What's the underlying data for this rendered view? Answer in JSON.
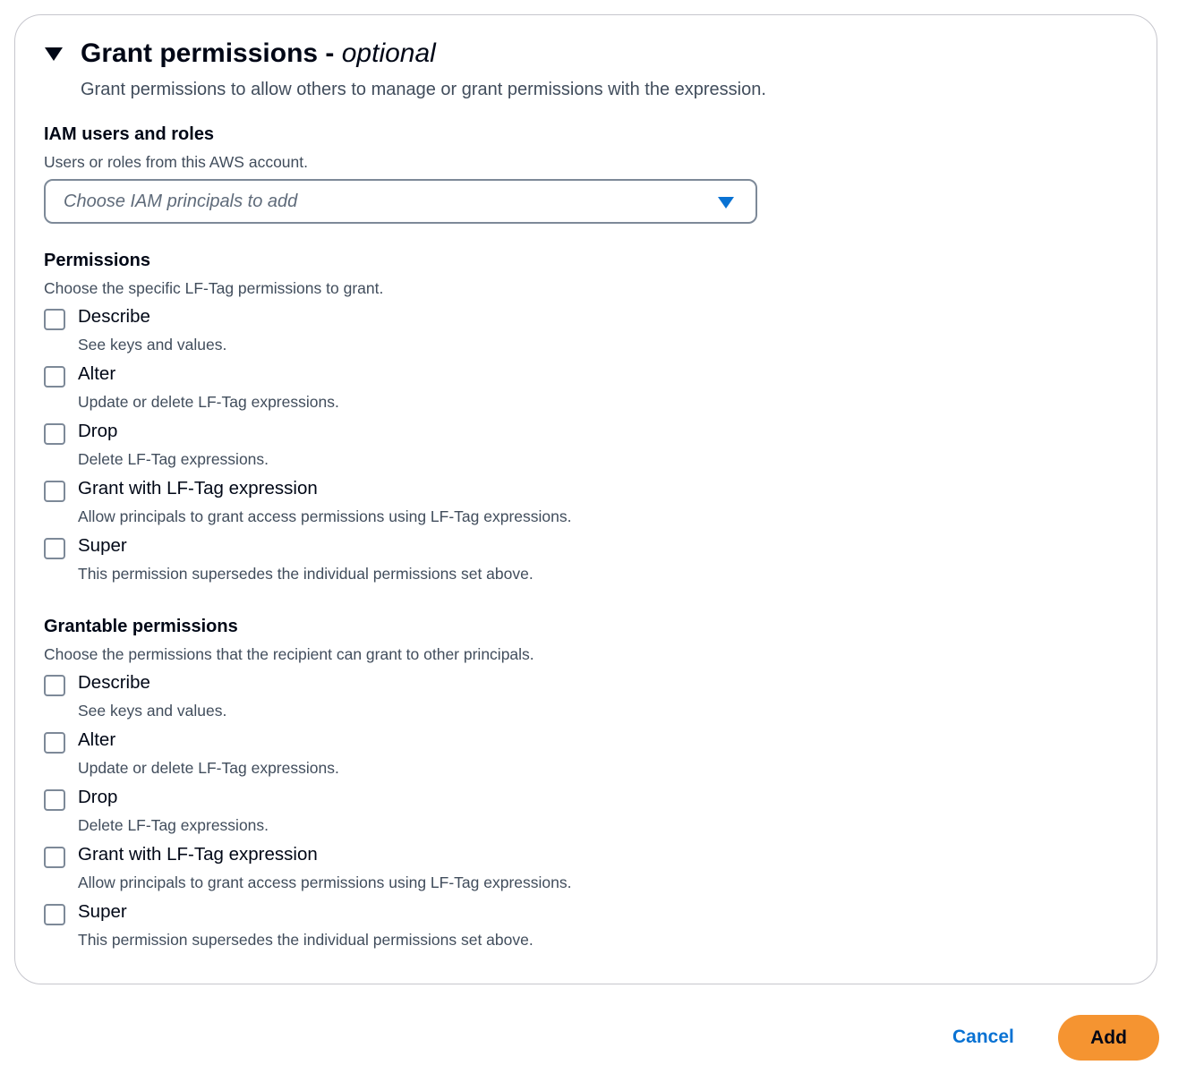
{
  "section": {
    "title": "Grant permissions",
    "title_separator": " - ",
    "title_suffix": "optional",
    "description": "Grant permissions to allow others to manage or grant permissions with the expression.",
    "expanded": true
  },
  "iam": {
    "label": "IAM users and roles",
    "description": "Users or roles from this AWS account.",
    "placeholder": "Choose IAM principals to add"
  },
  "permissions": {
    "label": "Permissions",
    "description": "Choose the specific LF-Tag permissions to grant.",
    "items": [
      {
        "label": "Describe",
        "description": "See keys and values.",
        "checked": false
      },
      {
        "label": "Alter",
        "description": "Update or delete LF-Tag expressions.",
        "checked": false
      },
      {
        "label": "Drop",
        "description": "Delete LF-Tag expressions.",
        "checked": false
      },
      {
        "label": "Grant with LF-Tag expression",
        "description": "Allow principals to grant access permissions using LF-Tag expressions.",
        "checked": false
      },
      {
        "label": "Super",
        "description": "This permission supersedes the individual permissions set above.",
        "checked": false
      }
    ]
  },
  "grantable": {
    "label": "Grantable permissions",
    "description": "Choose the permissions that the recipient can grant to other principals.",
    "items": [
      {
        "label": "Describe",
        "description": "See keys and values.",
        "checked": false
      },
      {
        "label": "Alter",
        "description": "Update or delete LF-Tag expressions.",
        "checked": false
      },
      {
        "label": "Drop",
        "description": "Delete LF-Tag expressions.",
        "checked": false
      },
      {
        "label": "Grant with LF-Tag expression",
        "description": "Allow principals to grant access permissions using LF-Tag expressions.",
        "checked": false
      },
      {
        "label": "Super",
        "description": "This permission supersedes the individual permissions set above.",
        "checked": false
      }
    ]
  },
  "footer": {
    "cancel_label": "Cancel",
    "add_label": "Add"
  },
  "colors": {
    "primary": "#f59431",
    "link": "#0972d3",
    "text": "#000716"
  }
}
